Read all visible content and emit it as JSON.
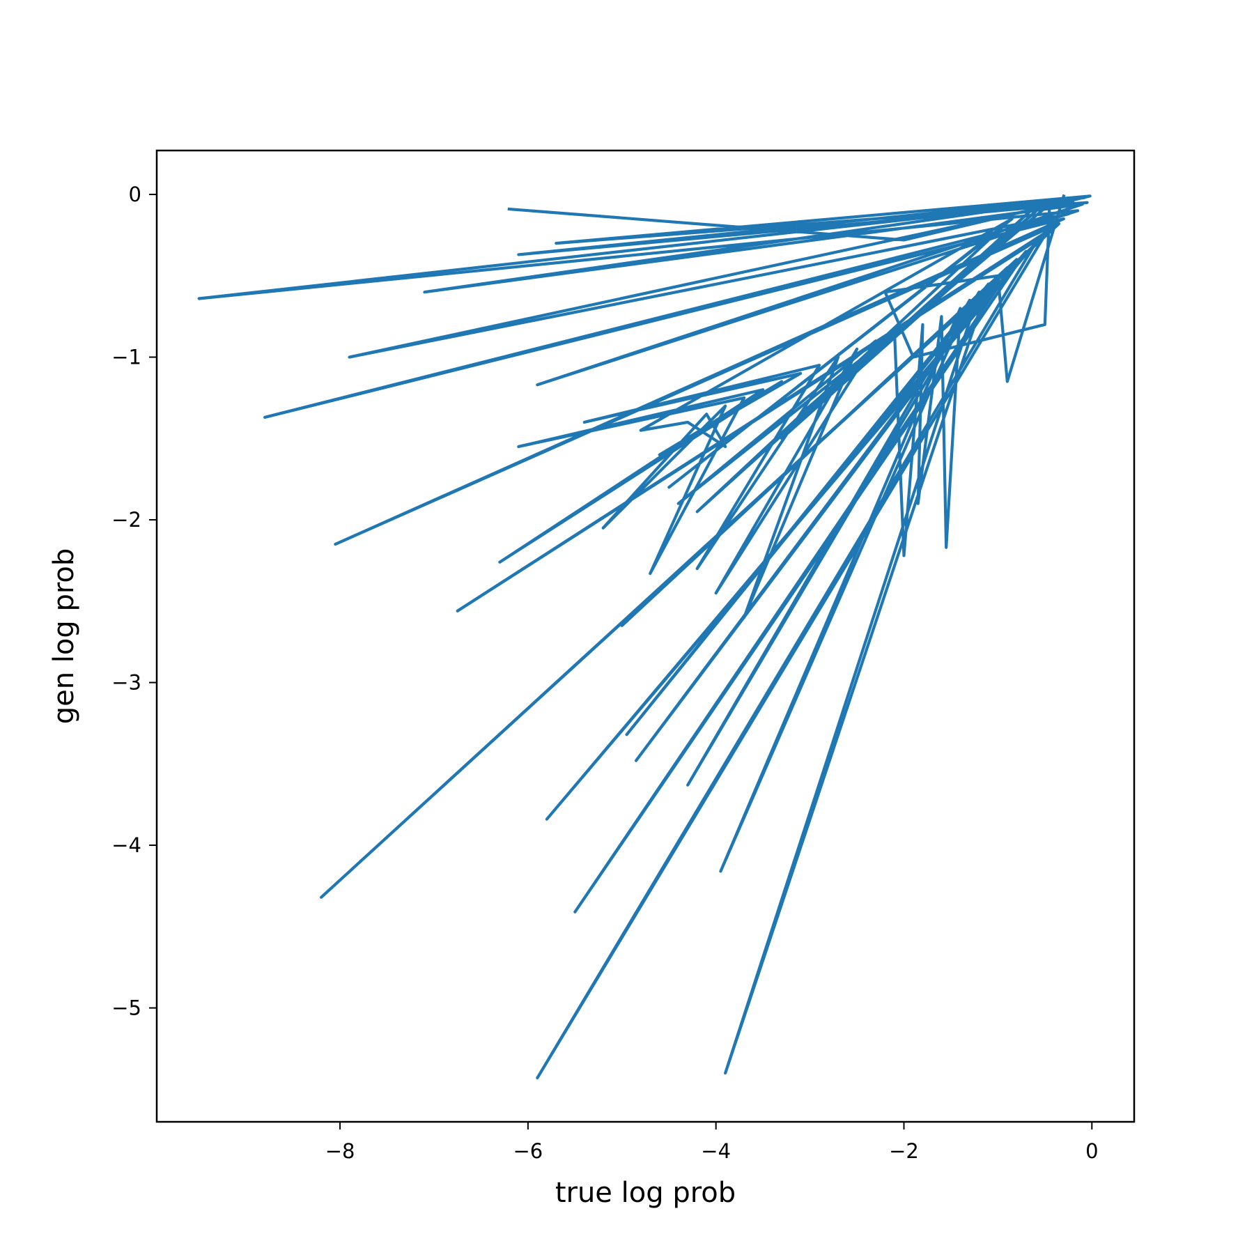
{
  "chart_data": {
    "type": "line",
    "title": "",
    "xlabel": "true log prob",
    "ylabel": "gen log prob",
    "xlim": [
      -9.95,
      0.45
    ],
    "ylim": [
      -5.7,
      0.27
    ],
    "xticks": [
      -8,
      -6,
      -4,
      -2,
      0
    ],
    "xtick_labels": [
      "−8",
      "−6",
      "−4",
      "−2",
      "0"
    ],
    "yticks": [
      0,
      -1,
      -2,
      -3,
      -4,
      -5
    ],
    "ytick_labels": [
      "0",
      "−1",
      "−2",
      "−3",
      "−4",
      "−5"
    ],
    "grid": false,
    "legend": "none",
    "series_color": "#1f77b4",
    "series": [
      {
        "x": [
          -6.2,
          -2.0,
          -0.02,
          -5.7,
          -0.05,
          -6.1,
          -0.08,
          -7.1,
          -0.1,
          -5.9,
          -0.15,
          -9.5,
          -0.2,
          -7.9,
          -0.25,
          -8.8,
          -0.3,
          -8.05,
          -0.35,
          -8.2,
          -0.4,
          -6.75,
          -0.5,
          -5.9,
          -0.6,
          -5.8,
          -0.7,
          -5.5,
          -0.8,
          -5.0,
          -0.9,
          -4.85,
          -1.0,
          -4.95,
          -1.1,
          -3.9,
          -1.2,
          -4.3,
          -1.3,
          -3.95,
          -1.4,
          -1.55,
          -1.6,
          -1.85,
          -1.8,
          -2.0,
          -2.1,
          -4.4,
          -2.3,
          -4.0,
          -2.5,
          -3.7,
          -2.7,
          -4.2,
          -2.9,
          -5.4,
          -3.1,
          -4.6,
          -3.3,
          -6.3,
          -3.5,
          -6.1,
          -3.7,
          -4.7,
          -3.9,
          -5.2,
          -4.1,
          -3.9,
          -4.3,
          -4.8,
          -0.85,
          -4.5,
          -0.95,
          -4.2,
          -0.65,
          -3.3,
          -0.55,
          -3.1,
          -0.45,
          -0.5,
          -1.9,
          -2.2,
          -1.0,
          -0.9,
          -0.3
        ],
        "y": [
          -0.09,
          -0.28,
          -0.01,
          -0.3,
          -0.05,
          -0.37,
          -0.02,
          -0.6,
          -0.06,
          -1.17,
          -0.1,
          -0.64,
          -0.04,
          -1.0,
          -0.12,
          -1.37,
          -0.15,
          -2.15,
          -0.18,
          -4.32,
          -0.2,
          -2.56,
          -0.25,
          -5.43,
          -0.3,
          -3.84,
          -0.35,
          -4.41,
          -0.4,
          -2.65,
          -0.45,
          -3.48,
          -0.5,
          -3.32,
          -0.55,
          -5.4,
          -0.6,
          -3.63,
          -0.65,
          -4.16,
          -0.7,
          -2.17,
          -0.75,
          -1.9,
          -0.8,
          -2.22,
          -0.85,
          -1.9,
          -0.9,
          -2.45,
          -0.95,
          -2.6,
          -1.0,
          -2.3,
          -1.05,
          -1.4,
          -1.1,
          -1.6,
          -1.15,
          -2.26,
          -1.2,
          -1.55,
          -1.25,
          -2.33,
          -1.3,
          -2.05,
          -1.35,
          -1.55,
          -1.4,
          -1.45,
          -0.15,
          -1.8,
          -0.2,
          -1.95,
          -0.1,
          -1.5,
          -0.08,
          -1.35,
          -0.06,
          -0.8,
          -1.0,
          -0.6,
          -0.5,
          -1.15,
          -0.01
        ]
      }
    ]
  }
}
